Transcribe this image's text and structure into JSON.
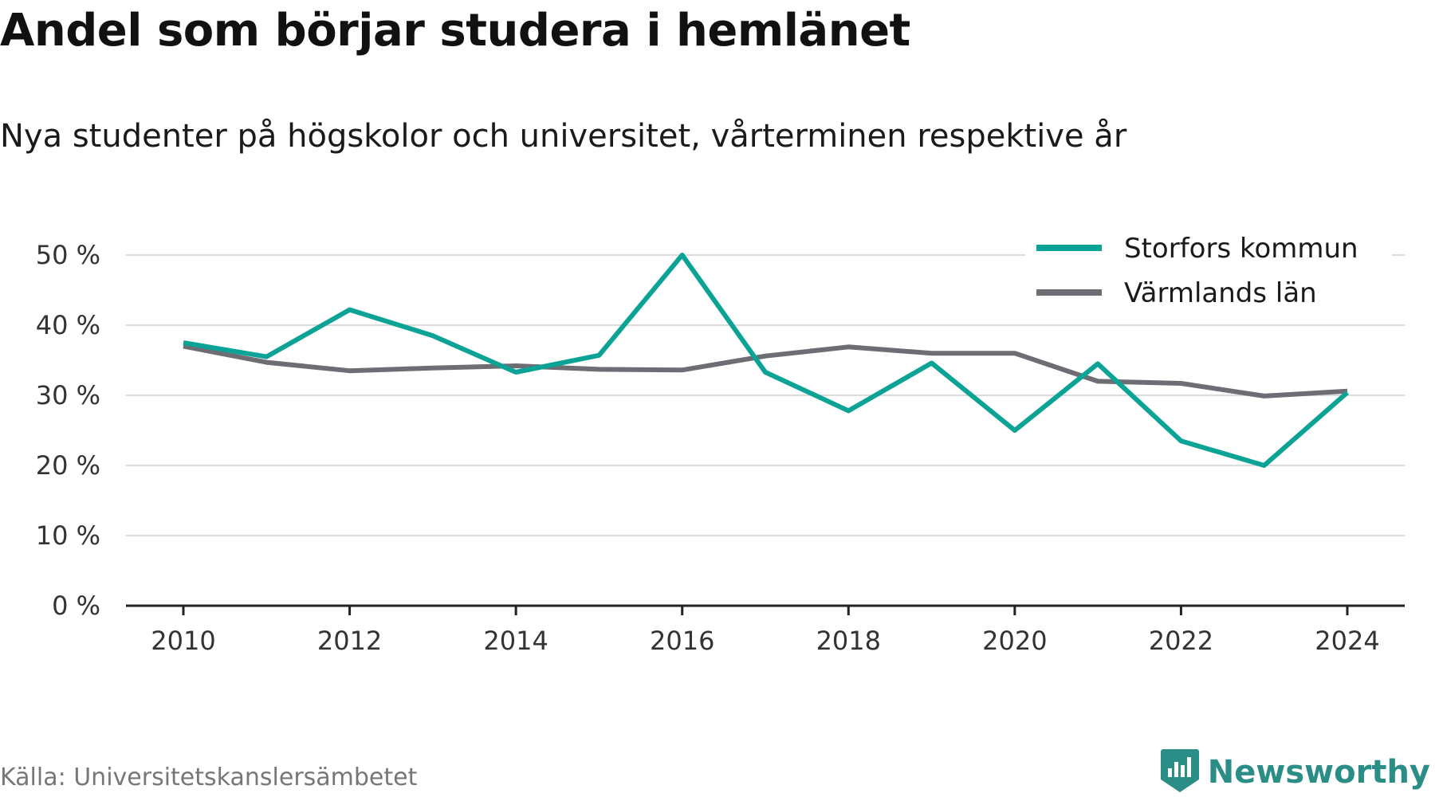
{
  "title": "Andel som börjar studera i hemlänet",
  "subtitle": "Nya studenter på högskolor och universitet, vårterminen respektive år",
  "source": "Källa: Universitetskanslersämbetet",
  "brand": {
    "name": "Newsworthy",
    "icon": "newsworthy-logo-icon",
    "color": "#2a8d86"
  },
  "chart_data": {
    "type": "line",
    "x": [
      2010,
      2011,
      2012,
      2013,
      2014,
      2015,
      2016,
      2017,
      2018,
      2019,
      2020,
      2021,
      2022,
      2023,
      2024
    ],
    "x_ticks": [
      "2010",
      "2012",
      "2014",
      "2016",
      "2018",
      "2020",
      "2022",
      "2024"
    ],
    "y_ticks": [
      "0 %",
      "10 %",
      "20 %",
      "30 %",
      "40 %",
      "50 %"
    ],
    "ylim": [
      0,
      50
    ],
    "grid": true,
    "legend_position": "top-right",
    "series": [
      {
        "name": "Storfors kommun",
        "color": "#0aa396",
        "values": [
          37.5,
          35.5,
          42.2,
          38.5,
          33.3,
          35.7,
          50.0,
          33.3,
          27.8,
          34.6,
          25.0,
          34.5,
          23.5,
          20.0,
          30.4
        ]
      },
      {
        "name": "Värmlands län",
        "color": "#6e6d74",
        "values": [
          37.0,
          34.7,
          33.5,
          33.9,
          34.2,
          33.7,
          33.6,
          35.6,
          36.9,
          36.0,
          36.0,
          32.0,
          31.7,
          29.9,
          30.6
        ]
      }
    ]
  }
}
